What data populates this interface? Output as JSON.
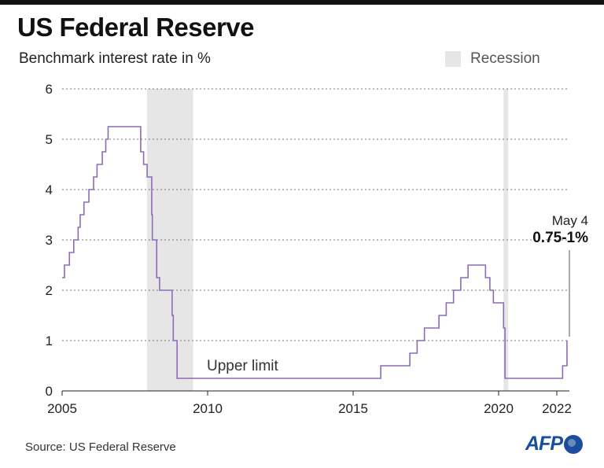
{
  "chart_data": {
    "type": "line",
    "title": "US Federal Reserve",
    "subtitle": "Benchmark interest rate in %",
    "legend": {
      "label": "Recession",
      "placement": "top-right",
      "color": "#e6e6e6"
    },
    "line_color": "#8a6db3",
    "xlim": [
      2005,
      2022.4
    ],
    "ylim": [
      0,
      6
    ],
    "x_ticks": [
      2005,
      2010,
      2015,
      2020,
      2022
    ],
    "x_tick_labels": [
      "2005",
      "2010",
      "2015",
      "2020",
      "2022"
    ],
    "y_ticks": [
      0,
      1,
      2,
      3,
      4,
      5,
      6
    ],
    "y_tick_labels": [
      "0",
      "1",
      "2",
      "3",
      "4",
      "5",
      "6"
    ],
    "grid": "horizontal-dotted",
    "recessions": [
      {
        "start": 2007.92,
        "end": 2009.5
      },
      {
        "start": 2020.17,
        "end": 2020.33
      }
    ],
    "series": [
      {
        "step": true,
        "points": [
          [
            2005.0,
            2.25
          ],
          [
            2005.08,
            2.5
          ],
          [
            2005.25,
            2.75
          ],
          [
            2005.4,
            3.0
          ],
          [
            2005.55,
            3.25
          ],
          [
            2005.62,
            3.5
          ],
          [
            2005.75,
            3.75
          ],
          [
            2005.92,
            4.0
          ],
          [
            2006.08,
            4.25
          ],
          [
            2006.2,
            4.5
          ],
          [
            2006.38,
            4.75
          ],
          [
            2006.5,
            5.0
          ],
          [
            2006.58,
            5.25
          ],
          [
            2007.7,
            4.75
          ],
          [
            2007.8,
            4.5
          ],
          [
            2007.92,
            4.25
          ],
          [
            2008.08,
            3.5
          ],
          [
            2008.1,
            3.0
          ],
          [
            2008.25,
            2.25
          ],
          [
            2008.35,
            2.0
          ],
          [
            2008.78,
            1.5
          ],
          [
            2008.82,
            1.0
          ],
          [
            2008.95,
            0.25
          ],
          [
            2015.95,
            0.5
          ],
          [
            2016.95,
            0.75
          ],
          [
            2017.2,
            1.0
          ],
          [
            2017.45,
            1.25
          ],
          [
            2017.95,
            1.5
          ],
          [
            2018.2,
            1.75
          ],
          [
            2018.45,
            2.0
          ],
          [
            2018.7,
            2.25
          ],
          [
            2018.95,
            2.5
          ],
          [
            2019.55,
            2.25
          ],
          [
            2019.7,
            2.0
          ],
          [
            2019.82,
            1.75
          ],
          [
            2020.17,
            1.25
          ],
          [
            2020.22,
            0.25
          ],
          [
            2022.2,
            0.5
          ],
          [
            2022.35,
            1.0
          ]
        ]
      }
    ],
    "annotations": {
      "upper_limit": "Upper limit",
      "date": "May 4",
      "value": "0.75-1%"
    },
    "source": "Source:  US Federal Reserve",
    "logo": "AFP"
  }
}
